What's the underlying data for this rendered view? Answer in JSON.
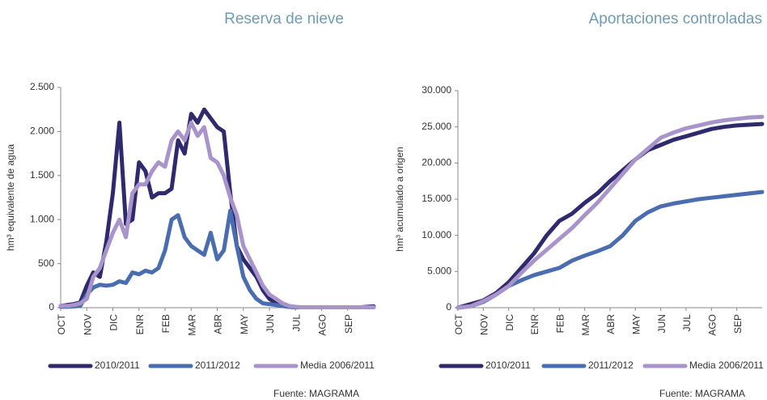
{
  "chart_data": [
    {
      "type": "line",
      "title": "Reserva de nieve",
      "y_label": "hm³ equivalente  de agua",
      "source": "Fuente: MAGRAMA",
      "x": [
        0,
        0.25,
        0.5,
        0.75,
        1,
        1.25,
        1.5,
        1.75,
        2,
        2.25,
        2.5,
        2.75,
        3,
        3.25,
        3.5,
        3.75,
        4,
        4.25,
        4.5,
        4.75,
        5,
        5.25,
        5.5,
        5.75,
        6,
        6.25,
        6.5,
        6.75,
        7,
        7.25,
        7.5,
        7.75,
        8,
        8.25,
        8.5,
        8.75,
        9,
        9.25,
        9.5,
        9.75,
        10,
        10.25,
        10.5,
        10.75,
        11,
        11.25,
        11.5,
        11.75,
        12
      ],
      "xlim": [
        0,
        12
      ],
      "xticks": [
        {
          "value": 0,
          "label": "OCT"
        },
        {
          "value": 1,
          "label": "NOV"
        },
        {
          "value": 2,
          "label": "DIC"
        },
        {
          "value": 3,
          "label": "ENR"
        },
        {
          "value": 4,
          "label": "FEB"
        },
        {
          "value": 5,
          "label": "MAR"
        },
        {
          "value": 6,
          "label": "ABR"
        },
        {
          "value": 7,
          "label": "MAY"
        },
        {
          "value": 8,
          "label": "JUN"
        },
        {
          "value": 9,
          "label": "JUL"
        },
        {
          "value": 10,
          "label": "AGO"
        },
        {
          "value": 11,
          "label": "SEP"
        }
      ],
      "ylim": [
        0,
        2500
      ],
      "yticks": [
        0,
        {
          "value": 500,
          "label": "500"
        },
        {
          "value": 1000,
          "label": "1.000"
        },
        {
          "value": 1500,
          "label": "1.500"
        },
        {
          "value": 2000,
          "label": "2.000"
        },
        {
          "value": 2500,
          "label": "2.500"
        }
      ],
      "series": [
        {
          "name": "2010/2011",
          "color": "#2f2a6e",
          "values": [
            20,
            30,
            40,
            60,
            250,
            400,
            350,
            750,
            1300,
            2100,
            950,
            1000,
            1650,
            1550,
            1250,
            1300,
            1300,
            1350,
            1900,
            1750,
            2200,
            2100,
            2250,
            2150,
            2050,
            2000,
            1300,
            700,
            550,
            450,
            350,
            200,
            100,
            50,
            20,
            10,
            5,
            5,
            5,
            5,
            5,
            5,
            5,
            5,
            5,
            5,
            5,
            10,
            15
          ]
        },
        {
          "name": "2011/2012",
          "color": "#4a6db0",
          "values": [
            10,
            10,
            15,
            20,
            150,
            230,
            260,
            250,
            260,
            300,
            280,
            400,
            380,
            420,
            400,
            450,
            650,
            1000,
            1050,
            800,
            700,
            650,
            600,
            850,
            550,
            650,
            1100,
            700,
            350,
            200,
            100,
            50,
            40,
            30,
            20,
            10,
            5,
            5,
            5,
            5,
            5,
            5,
            5,
            5,
            5,
            5,
            5,
            5,
            5
          ]
        },
        {
          "name": "Media 2006/2011",
          "color": "#a993cb",
          "values": [
            20,
            20,
            30,
            50,
            100,
            350,
            450,
            650,
            850,
            1000,
            800,
            1300,
            1400,
            1400,
            1550,
            1650,
            1600,
            1900,
            2000,
            1900,
            2100,
            1950,
            2050,
            1700,
            1650,
            1500,
            1250,
            1050,
            700,
            550,
            400,
            250,
            150,
            100,
            50,
            20,
            10,
            5,
            5,
            5,
            5,
            5,
            5,
            5,
            5,
            5,
            5,
            5,
            5
          ]
        }
      ]
    },
    {
      "type": "line",
      "title": "Aportaciones controladas",
      "y_label": "hm³ acumulado a origen",
      "source": "Fuente: MAGRAMA",
      "x": [
        0,
        0.5,
        1,
        1.5,
        2,
        2.5,
        3,
        3.5,
        4,
        4.5,
        5,
        5.5,
        6,
        6.5,
        7,
        7.5,
        8,
        8.5,
        9,
        9.5,
        10,
        10.5,
        11,
        11.5,
        12
      ],
      "xlim": [
        0,
        12
      ],
      "xticks": [
        {
          "value": 0,
          "label": "OCT"
        },
        {
          "value": 1,
          "label": "NOV"
        },
        {
          "value": 2,
          "label": "DIC"
        },
        {
          "value": 3,
          "label": "ENR"
        },
        {
          "value": 4,
          "label": "FEB"
        },
        {
          "value": 5,
          "label": "MAR"
        },
        {
          "value": 6,
          "label": "ABR"
        },
        {
          "value": 7,
          "label": "MAY"
        },
        {
          "value": 8,
          "label": "JUN"
        },
        {
          "value": 9,
          "label": "JUL"
        },
        {
          "value": 10,
          "label": "AGO"
        },
        {
          "value": 11,
          "label": "SEP"
        }
      ],
      "ylim": [
        0,
        30000
      ],
      "yticks": [
        0,
        {
          "value": 5000,
          "label": "5.000"
        },
        {
          "value": 10000,
          "label": "10.000"
        },
        {
          "value": 15000,
          "label": "15.000"
        },
        {
          "value": 20000,
          "label": "20.000"
        },
        {
          "value": 25000,
          "label": "25.000"
        },
        {
          "value": 30000,
          "label": "30.000"
        }
      ],
      "series": [
        {
          "name": "2010/2011",
          "color": "#2f2a6e",
          "values": [
            0,
            500,
            1000,
            2000,
            3500,
            5500,
            7500,
            10000,
            12000,
            13000,
            14500,
            15800,
            17500,
            19000,
            20500,
            21800,
            22500,
            23200,
            23700,
            24200,
            24700,
            25000,
            25200,
            25300,
            25400
          ]
        },
        {
          "name": "2011/2012",
          "color": "#4a6db0",
          "values": [
            0,
            200,
            800,
            1800,
            3000,
            3800,
            4500,
            5000,
            5500,
            6500,
            7200,
            7800,
            8500,
            10000,
            12000,
            13200,
            14000,
            14400,
            14700,
            15000,
            15200,
            15400,
            15600,
            15800,
            16000
          ]
        },
        {
          "name": "Media 2006/2011",
          "color": "#a993cb",
          "values": [
            0,
            200,
            900,
            1800,
            3000,
            4800,
            6500,
            8000,
            9500,
            11000,
            12800,
            14500,
            16500,
            18500,
            20500,
            22000,
            23500,
            24200,
            24800,
            25200,
            25600,
            25900,
            26100,
            26300,
            26400
          ]
        }
      ]
    }
  ]
}
